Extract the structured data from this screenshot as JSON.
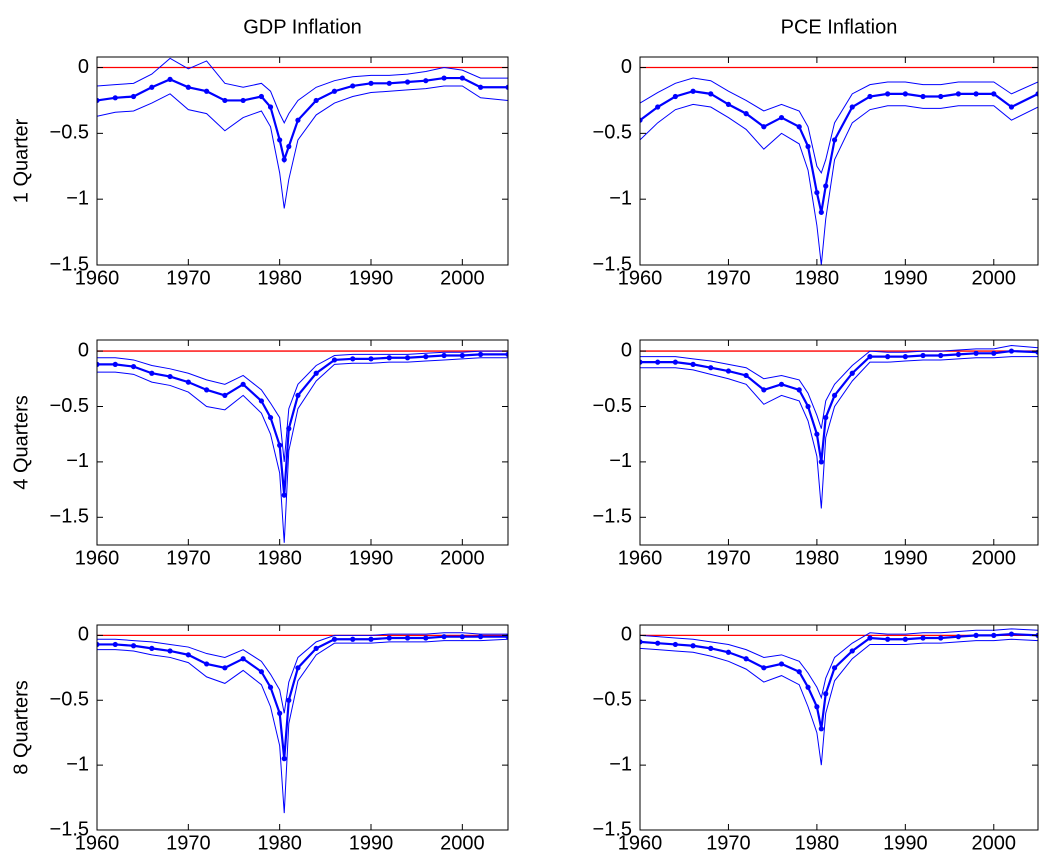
{
  "chart_data": [
    {
      "type": "line",
      "title": "GDP Inflation",
      "ylabel": "1 Quarter",
      "x": [
        1960,
        1962,
        1964,
        1966,
        1968,
        1970,
        1972,
        1974,
        1976,
        1978,
        1979,
        1980,
        1980.5,
        1981,
        1982,
        1984,
        1986,
        1988,
        1990,
        1992,
        1994,
        1996,
        1998,
        2000,
        2002,
        2005
      ],
      "series": [
        {
          "color": "#0000ff",
          "markers": true,
          "values": [
            -0.25,
            -0.23,
            -0.22,
            -0.15,
            -0.09,
            -0.15,
            -0.18,
            -0.25,
            -0.25,
            -0.22,
            -0.3,
            -0.55,
            -0.7,
            -0.6,
            -0.4,
            -0.25,
            -0.18,
            -0.14,
            -0.12,
            -0.12,
            -0.11,
            -0.1,
            -0.08,
            -0.08,
            -0.15,
            -0.15
          ]
        },
        {
          "color": "#0000ff",
          "values": [
            -0.14,
            -0.13,
            -0.12,
            -0.05,
            0.07,
            -0.01,
            0.05,
            -0.12,
            -0.15,
            -0.12,
            -0.18,
            -0.35,
            -0.42,
            -0.35,
            -0.25,
            -0.15,
            -0.1,
            -0.07,
            -0.06,
            -0.06,
            -0.05,
            -0.03,
            0.0,
            -0.02,
            -0.08,
            -0.08
          ]
        },
        {
          "color": "#0000ff",
          "values": [
            -0.37,
            -0.34,
            -0.33,
            -0.27,
            -0.2,
            -0.32,
            -0.35,
            -0.48,
            -0.38,
            -0.33,
            -0.45,
            -0.8,
            -1.07,
            -0.85,
            -0.55,
            -0.36,
            -0.27,
            -0.22,
            -0.19,
            -0.18,
            -0.17,
            -0.16,
            -0.14,
            -0.14,
            -0.23,
            -0.25
          ]
        }
      ],
      "hline": {
        "value": 0,
        "color": "#ff0000"
      },
      "xlim": [
        1960,
        2005
      ],
      "xticks": [
        1960,
        1970,
        1980,
        1990,
        2000
      ],
      "ylim": [
        -1.5,
        0.08
      ],
      "yticks": [
        {
          "value": -1.5,
          "label": "−1.5"
        },
        {
          "value": -1,
          "label": "−1"
        },
        {
          "value": -0.5,
          "label": "−0.5"
        },
        0
      ]
    },
    {
      "type": "line",
      "title": "PCE Inflation",
      "x": [
        1960,
        1962,
        1964,
        1966,
        1968,
        1970,
        1972,
        1974,
        1976,
        1978,
        1979,
        1980,
        1980.5,
        1981,
        1982,
        1984,
        1986,
        1988,
        1990,
        1992,
        1994,
        1996,
        1998,
        2000,
        2002,
        2005
      ],
      "series": [
        {
          "color": "#0000ff",
          "markers": true,
          "values": [
            -0.4,
            -0.3,
            -0.22,
            -0.18,
            -0.2,
            -0.28,
            -0.35,
            -0.45,
            -0.38,
            -0.45,
            -0.6,
            -0.95,
            -1.1,
            -0.9,
            -0.55,
            -0.3,
            -0.22,
            -0.2,
            -0.2,
            -0.22,
            -0.22,
            -0.2,
            -0.2,
            -0.2,
            -0.3,
            -0.2
          ]
        },
        {
          "color": "#0000ff",
          "values": [
            -0.27,
            -0.19,
            -0.12,
            -0.08,
            -0.1,
            -0.18,
            -0.25,
            -0.33,
            -0.28,
            -0.33,
            -0.45,
            -0.75,
            -0.8,
            -0.7,
            -0.42,
            -0.2,
            -0.13,
            -0.11,
            -0.11,
            -0.13,
            -0.13,
            -0.11,
            -0.11,
            -0.11,
            -0.2,
            -0.11
          ]
        },
        {
          "color": "#0000ff",
          "values": [
            -0.55,
            -0.42,
            -0.32,
            -0.28,
            -0.3,
            -0.38,
            -0.47,
            -0.62,
            -0.5,
            -0.58,
            -0.78,
            -1.2,
            -1.5,
            -1.15,
            -0.7,
            -0.42,
            -0.32,
            -0.29,
            -0.29,
            -0.31,
            -0.31,
            -0.29,
            -0.29,
            -0.29,
            -0.4,
            -0.3
          ]
        }
      ],
      "hline": {
        "value": 0,
        "color": "#ff0000"
      },
      "xlim": [
        1960,
        2005
      ],
      "xticks": [
        1960,
        1970,
        1980,
        1990,
        2000
      ],
      "ylim": [
        -1.5,
        0.08
      ],
      "yticks": [
        {
          "value": -1.5,
          "label": "−1.5"
        },
        {
          "value": -1,
          "label": "−1"
        },
        {
          "value": -0.5,
          "label": "−0.5"
        },
        0
      ]
    },
    {
      "type": "line",
      "ylabel": "4 Quarters",
      "x": [
        1960,
        1962,
        1964,
        1966,
        1968,
        1970,
        1972,
        1974,
        1976,
        1978,
        1979,
        1980,
        1980.5,
        1981,
        1982,
        1984,
        1986,
        1988,
        1990,
        1992,
        1994,
        1996,
        1998,
        2000,
        2002,
        2005
      ],
      "series": [
        {
          "color": "#0000ff",
          "markers": true,
          "values": [
            -0.12,
            -0.12,
            -0.14,
            -0.2,
            -0.23,
            -0.28,
            -0.35,
            -0.4,
            -0.3,
            -0.45,
            -0.6,
            -0.85,
            -1.3,
            -0.7,
            -0.4,
            -0.2,
            -0.08,
            -0.07,
            -0.07,
            -0.06,
            -0.06,
            -0.05,
            -0.04,
            -0.04,
            -0.03,
            -0.03
          ]
        },
        {
          "color": "#0000ff",
          "values": [
            -0.06,
            -0.06,
            -0.08,
            -0.13,
            -0.16,
            -0.2,
            -0.26,
            -0.3,
            -0.22,
            -0.35,
            -0.47,
            -0.6,
            -1.0,
            -0.52,
            -0.3,
            -0.13,
            -0.04,
            -0.03,
            -0.03,
            -0.03,
            -0.03,
            -0.02,
            -0.01,
            -0.01,
            0.0,
            0.0
          ]
        },
        {
          "color": "#0000ff",
          "values": [
            -0.19,
            -0.19,
            -0.21,
            -0.28,
            -0.31,
            -0.37,
            -0.5,
            -0.53,
            -0.4,
            -0.56,
            -0.75,
            -1.1,
            -1.73,
            -0.9,
            -0.52,
            -0.27,
            -0.12,
            -0.11,
            -0.11,
            -0.1,
            -0.1,
            -0.09,
            -0.08,
            -0.07,
            -0.06,
            -0.06
          ]
        }
      ],
      "hline": {
        "value": 0,
        "color": "#ff0000"
      },
      "xlim": [
        1960,
        2005
      ],
      "xticks": [
        1960,
        1970,
        1980,
        1990,
        2000
      ],
      "ylim": [
        -1.75,
        0.1
      ],
      "yticks": [
        {
          "value": -1.5,
          "label": "−1.5"
        },
        {
          "value": -1,
          "label": "−1"
        },
        {
          "value": -0.5,
          "label": "−0.5"
        },
        0
      ]
    },
    {
      "type": "line",
      "x": [
        1960,
        1962,
        1964,
        1966,
        1968,
        1970,
        1972,
        1974,
        1976,
        1978,
        1979,
        1980,
        1980.5,
        1981,
        1982,
        1984,
        1986,
        1988,
        1990,
        1992,
        1994,
        1996,
        1998,
        2000,
        2002,
        2005
      ],
      "series": [
        {
          "color": "#0000ff",
          "markers": true,
          "values": [
            -0.1,
            -0.1,
            -0.1,
            -0.12,
            -0.15,
            -0.18,
            -0.22,
            -0.35,
            -0.3,
            -0.35,
            -0.5,
            -0.75,
            -1.0,
            -0.6,
            -0.4,
            -0.2,
            -0.05,
            -0.05,
            -0.05,
            -0.04,
            -0.04,
            -0.03,
            -0.02,
            -0.02,
            0.0,
            -0.01
          ]
        },
        {
          "color": "#0000ff",
          "values": [
            -0.05,
            -0.05,
            -0.05,
            -0.07,
            -0.09,
            -0.12,
            -0.15,
            -0.25,
            -0.22,
            -0.26,
            -0.38,
            -0.58,
            -0.7,
            -0.45,
            -0.3,
            -0.13,
            0.0,
            -0.01,
            -0.01,
            0.0,
            0.0,
            0.01,
            0.02,
            0.02,
            0.05,
            0.03
          ]
        },
        {
          "color": "#0000ff",
          "values": [
            -0.15,
            -0.15,
            -0.15,
            -0.17,
            -0.21,
            -0.25,
            -0.3,
            -0.48,
            -0.4,
            -0.45,
            -0.63,
            -0.95,
            -1.42,
            -0.78,
            -0.5,
            -0.27,
            -0.1,
            -0.1,
            -0.09,
            -0.08,
            -0.08,
            -0.07,
            -0.06,
            -0.06,
            -0.05,
            -0.05
          ]
        }
      ],
      "hline": {
        "value": 0,
        "color": "#ff0000"
      },
      "xlim": [
        1960,
        2005
      ],
      "xticks": [
        1960,
        1970,
        1980,
        1990,
        2000
      ],
      "ylim": [
        -1.75,
        0.1
      ],
      "yticks": [
        {
          "value": -1.5,
          "label": "−1.5"
        },
        {
          "value": -1,
          "label": "−1"
        },
        {
          "value": -0.5,
          "label": "−0.5"
        },
        0
      ]
    },
    {
      "type": "line",
      "ylabel": "8 Quarters",
      "x": [
        1960,
        1962,
        1964,
        1966,
        1968,
        1970,
        1972,
        1974,
        1976,
        1978,
        1979,
        1980,
        1980.5,
        1981,
        1982,
        1984,
        1986,
        1988,
        1990,
        1992,
        1994,
        1996,
        1998,
        2000,
        2002,
        2005
      ],
      "series": [
        {
          "color": "#0000ff",
          "markers": true,
          "values": [
            -0.07,
            -0.07,
            -0.08,
            -0.1,
            -0.12,
            -0.15,
            -0.22,
            -0.25,
            -0.18,
            -0.28,
            -0.4,
            -0.6,
            -0.95,
            -0.5,
            -0.25,
            -0.1,
            -0.03,
            -0.03,
            -0.03,
            -0.02,
            -0.02,
            -0.02,
            -0.01,
            -0.01,
            -0.01,
            -0.01
          ]
        },
        {
          "color": "#0000ff",
          "values": [
            -0.03,
            -0.03,
            -0.04,
            -0.05,
            -0.07,
            -0.09,
            -0.14,
            -0.17,
            -0.11,
            -0.2,
            -0.3,
            -0.42,
            -0.6,
            -0.36,
            -0.17,
            -0.05,
            0.0,
            0.0,
            0.0,
            0.01,
            0.01,
            0.01,
            0.02,
            0.02,
            0.01,
            0.01
          ]
        },
        {
          "color": "#0000ff",
          "values": [
            -0.11,
            -0.11,
            -0.12,
            -0.15,
            -0.17,
            -0.21,
            -0.32,
            -0.37,
            -0.27,
            -0.38,
            -0.55,
            -0.85,
            -1.37,
            -0.68,
            -0.35,
            -0.15,
            -0.06,
            -0.06,
            -0.06,
            -0.05,
            -0.05,
            -0.05,
            -0.04,
            -0.04,
            -0.04,
            -0.03
          ]
        }
      ],
      "hline": {
        "value": 0,
        "color": "#ff0000"
      },
      "xlim": [
        1960,
        2005
      ],
      "xticks": [
        1960,
        1970,
        1980,
        1990,
        2000
      ],
      "ylim": [
        -1.5,
        0.08
      ],
      "yticks": [
        {
          "value": -1.5,
          "label": "−1.5"
        },
        {
          "value": -1,
          "label": "−1"
        },
        {
          "value": -0.5,
          "label": "−0.5"
        },
        0
      ]
    },
    {
      "type": "line",
      "x": [
        1960,
        1962,
        1964,
        1966,
        1968,
        1970,
        1972,
        1974,
        1976,
        1978,
        1979,
        1980,
        1980.5,
        1981,
        1982,
        1984,
        1986,
        1988,
        1990,
        1992,
        1994,
        1996,
        1998,
        2000,
        2002,
        2005
      ],
      "series": [
        {
          "color": "#0000ff",
          "markers": true,
          "values": [
            -0.05,
            -0.06,
            -0.07,
            -0.08,
            -0.1,
            -0.13,
            -0.18,
            -0.25,
            -0.22,
            -0.28,
            -0.4,
            -0.55,
            -0.72,
            -0.45,
            -0.25,
            -0.12,
            -0.02,
            -0.03,
            -0.03,
            -0.02,
            -0.02,
            -0.01,
            0.0,
            0.0,
            0.01,
            0.0
          ]
        },
        {
          "color": "#0000ff",
          "values": [
            0.0,
            -0.01,
            -0.02,
            -0.03,
            -0.05,
            -0.07,
            -0.11,
            -0.17,
            -0.15,
            -0.2,
            -0.29,
            -0.4,
            -0.48,
            -0.33,
            -0.17,
            -0.06,
            0.02,
            0.01,
            0.01,
            0.02,
            0.02,
            0.03,
            0.04,
            0.04,
            0.05,
            0.04
          ]
        },
        {
          "color": "#0000ff",
          "values": [
            -0.1,
            -0.11,
            -0.12,
            -0.13,
            -0.16,
            -0.2,
            -0.26,
            -0.36,
            -0.31,
            -0.38,
            -0.55,
            -0.75,
            -1.0,
            -0.6,
            -0.35,
            -0.18,
            -0.07,
            -0.07,
            -0.07,
            -0.06,
            -0.06,
            -0.05,
            -0.04,
            -0.04,
            -0.03,
            -0.04
          ]
        }
      ],
      "hline": {
        "value": 0,
        "color": "#ff0000"
      },
      "xlim": [
        1960,
        2005
      ],
      "xticks": [
        1960,
        1970,
        1980,
        1990,
        2000
      ],
      "ylim": [
        -1.5,
        0.08
      ],
      "yticks": [
        {
          "value": -1.5,
          "label": "−1.5"
        },
        {
          "value": -1,
          "label": "−1"
        },
        {
          "value": -0.5,
          "label": "−0.5"
        },
        0
      ]
    }
  ]
}
